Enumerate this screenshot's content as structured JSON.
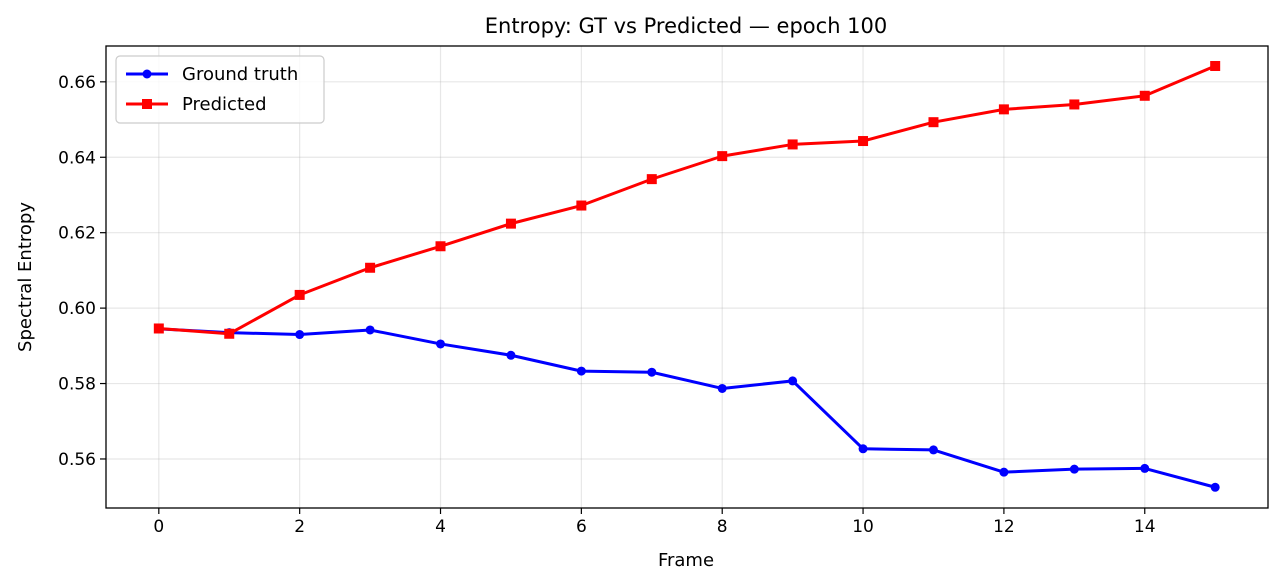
{
  "chart_data": {
    "type": "line",
    "title": "Entropy: GT vs Predicted — epoch 100",
    "xlabel": "Frame",
    "ylabel": "Spectral Entropy",
    "xlim": [
      -0.75,
      15.75
    ],
    "ylim": [
      0.547,
      0.6695
    ],
    "xticks": [
      0,
      2,
      4,
      6,
      8,
      10,
      12,
      14
    ],
    "xtick_labels": [
      "0",
      "2",
      "4",
      "6",
      "8",
      "10",
      "12",
      "14"
    ],
    "yticks": [
      0.56,
      0.58,
      0.6,
      0.62,
      0.64,
      0.66
    ],
    "ytick_labels": [
      "0.56",
      "0.58",
      "0.60",
      "0.62",
      "0.64",
      "0.66"
    ],
    "grid": true,
    "legend_position": "upper-left",
    "x": [
      0,
      1,
      2,
      3,
      4,
      5,
      6,
      7,
      8,
      9,
      10,
      11,
      12,
      13,
      14,
      15
    ],
    "series": [
      {
        "name": "Ground truth",
        "color": "#0000ff",
        "marker": "circle",
        "values": [
          0.5945,
          0.5935,
          0.593,
          0.5942,
          0.5905,
          0.5875,
          0.5833,
          0.583,
          0.5787,
          0.5807,
          0.5627,
          0.5624,
          0.5565,
          0.5573,
          0.5575,
          0.5525
        ]
      },
      {
        "name": "Predicted",
        "color": "#ff0000",
        "marker": "square",
        "values": [
          0.5946,
          0.5932,
          0.6035,
          0.6107,
          0.6164,
          0.6224,
          0.6272,
          0.6342,
          0.6403,
          0.6434,
          0.6443,
          0.6493,
          0.6527,
          0.654,
          0.6563,
          0.6642
        ]
      }
    ]
  }
}
